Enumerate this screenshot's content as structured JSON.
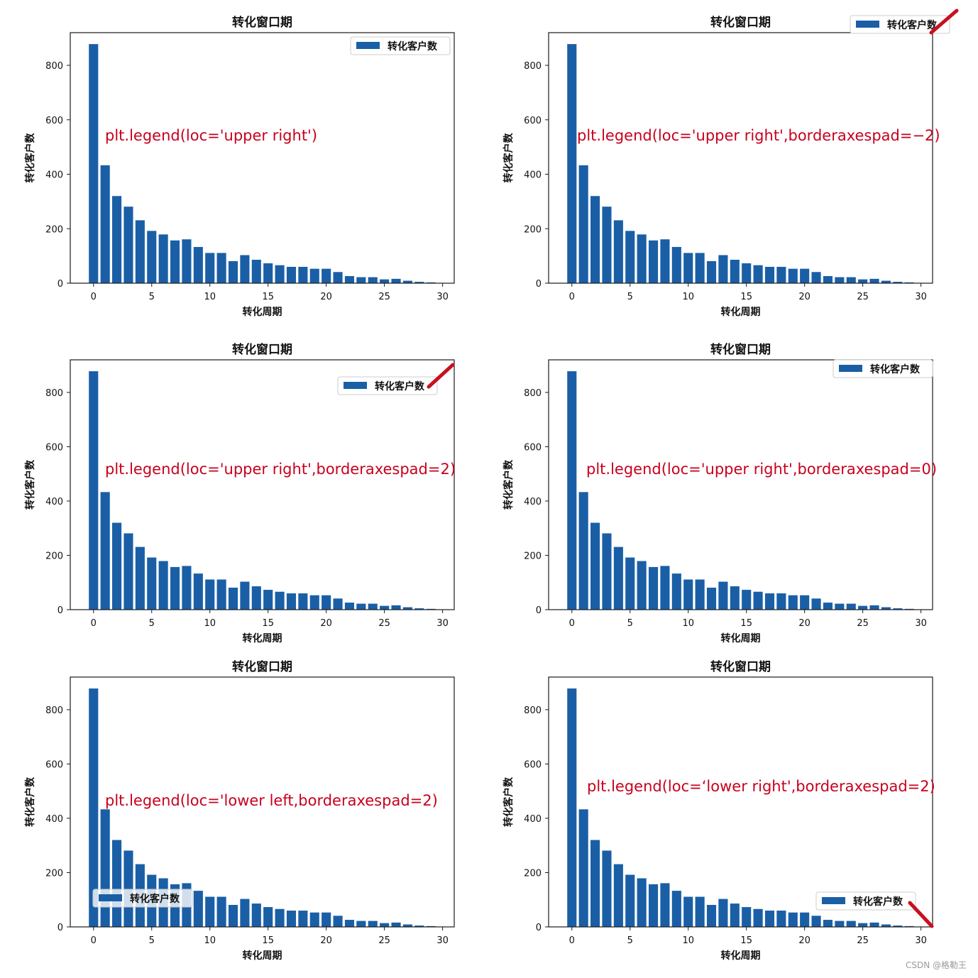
{
  "colors": {
    "bar": "#1a5fa6",
    "annotation": "#c8001e",
    "marker": "#c8101e",
    "axis": "#1a1a1a"
  },
  "watermark": "CSDN @格勒王",
  "shared": {
    "title": "转化窗口期",
    "xlabel": "转化周期",
    "ylabel": "转化客户数",
    "legend_label": "转化客户数"
  },
  "chart_data": [
    {
      "type": "bar",
      "title": "转化窗口期",
      "xlabel": "转化周期",
      "ylabel": "转化客户数",
      "x": [
        0,
        1,
        2,
        3,
        4,
        5,
        6,
        7,
        8,
        9,
        10,
        11,
        12,
        13,
        14,
        15,
        16,
        17,
        18,
        19,
        20,
        21,
        22,
        23,
        24,
        25,
        26,
        27,
        28,
        29
      ],
      "values": [
        878,
        433,
        320,
        281,
        231,
        192,
        179,
        157,
        161,
        133,
        111,
        111,
        81,
        103,
        86,
        73,
        66,
        60,
        60,
        53,
        53,
        41,
        26,
        22,
        22,
        14,
        16,
        9,
        5,
        3
      ],
      "xlim": [
        -2,
        31
      ],
      "ylim": [
        0,
        920
      ],
      "xticks": [
        "0",
        "5",
        "10",
        "15",
        "20",
        "25",
        "30"
      ],
      "yticks": [
        "0",
        "200",
        "400",
        "600",
        "800"
      ],
      "legend": {
        "label": "转化客户数",
        "loc": "upper right",
        "borderaxespad": 0.5
      },
      "annotation": "plt.legend(loc='upper right')"
    },
    {
      "type": "bar",
      "title": "转化窗口期",
      "xlabel": "转化周期",
      "ylabel": "转化客户数",
      "x": [
        0,
        1,
        2,
        3,
        4,
        5,
        6,
        7,
        8,
        9,
        10,
        11,
        12,
        13,
        14,
        15,
        16,
        17,
        18,
        19,
        20,
        21,
        22,
        23,
        24,
        25,
        26,
        27,
        28,
        29
      ],
      "values": [
        878,
        433,
        320,
        281,
        231,
        192,
        179,
        157,
        161,
        133,
        111,
        111,
        81,
        103,
        86,
        73,
        66,
        60,
        60,
        53,
        53,
        41,
        26,
        22,
        22,
        14,
        16,
        9,
        5,
        3
      ],
      "xlim": [
        -2,
        31
      ],
      "ylim": [
        0,
        920
      ],
      "xticks": [
        "0",
        "5",
        "10",
        "15",
        "20",
        "25",
        "30"
      ],
      "yticks": [
        "0",
        "200",
        "400",
        "600",
        "800"
      ],
      "legend": {
        "label": "转化客户数",
        "loc": "upper right",
        "borderaxespad": -2
      },
      "annotation": "plt.legend(loc='upper right',borderaxespad=−2)"
    },
    {
      "type": "bar",
      "title": "转化窗口期",
      "xlabel": "转化周期",
      "ylabel": "转化客户数",
      "x": [
        0,
        1,
        2,
        3,
        4,
        5,
        6,
        7,
        8,
        9,
        10,
        11,
        12,
        13,
        14,
        15,
        16,
        17,
        18,
        19,
        20,
        21,
        22,
        23,
        24,
        25,
        26,
        27,
        28,
        29
      ],
      "values": [
        878,
        433,
        320,
        281,
        231,
        192,
        179,
        157,
        161,
        133,
        111,
        111,
        81,
        103,
        86,
        73,
        66,
        60,
        60,
        53,
        53,
        41,
        26,
        22,
        22,
        14,
        16,
        9,
        5,
        3
      ],
      "xlim": [
        -2,
        31
      ],
      "ylim": [
        0,
        920
      ],
      "xticks": [
        "0",
        "5",
        "10",
        "15",
        "20",
        "25",
        "30"
      ],
      "yticks": [
        "0",
        "200",
        "400",
        "600",
        "800"
      ],
      "legend": {
        "label": "转化客户数",
        "loc": "upper right",
        "borderaxespad": 2
      },
      "annotation": "plt.legend(loc='upper right',borderaxespad=2)"
    },
    {
      "type": "bar",
      "title": "转化窗口期",
      "xlabel": "转化周期",
      "ylabel": "转化客户数",
      "x": [
        0,
        1,
        2,
        3,
        4,
        5,
        6,
        7,
        8,
        9,
        10,
        11,
        12,
        13,
        14,
        15,
        16,
        17,
        18,
        19,
        20,
        21,
        22,
        23,
        24,
        25,
        26,
        27,
        28,
        29
      ],
      "values": [
        878,
        433,
        320,
        281,
        231,
        192,
        179,
        157,
        161,
        133,
        111,
        111,
        81,
        103,
        86,
        73,
        66,
        60,
        60,
        53,
        53,
        41,
        26,
        22,
        22,
        14,
        16,
        9,
        5,
        3
      ],
      "xlim": [
        -2,
        31
      ],
      "ylim": [
        0,
        920
      ],
      "xticks": [
        "0",
        "5",
        "10",
        "15",
        "20",
        "25",
        "30"
      ],
      "yticks": [
        "0",
        "200",
        "400",
        "600",
        "800"
      ],
      "legend": {
        "label": "转化客户数",
        "loc": "upper right",
        "borderaxespad": 0
      },
      "annotation": "plt.legend(loc='upper right',borderaxespad=0)"
    },
    {
      "type": "bar",
      "title": "转化窗口期",
      "xlabel": "转化周期",
      "ylabel": "转化客户数",
      "x": [
        0,
        1,
        2,
        3,
        4,
        5,
        6,
        7,
        8,
        9,
        10,
        11,
        12,
        13,
        14,
        15,
        16,
        17,
        18,
        19,
        20,
        21,
        22,
        23,
        24,
        25,
        26,
        27,
        28,
        29
      ],
      "values": [
        878,
        433,
        320,
        281,
        231,
        192,
        179,
        157,
        161,
        133,
        111,
        111,
        81,
        103,
        86,
        73,
        66,
        60,
        60,
        53,
        53,
        41,
        26,
        22,
        22,
        14,
        16,
        9,
        5,
        3
      ],
      "xlim": [
        -2,
        31
      ],
      "ylim": [
        0,
        920
      ],
      "xticks": [
        "0",
        "5",
        "10",
        "15",
        "20",
        "25",
        "30"
      ],
      "yticks": [
        "0",
        "200",
        "400",
        "600",
        "800"
      ],
      "legend": {
        "label": "转化客户数",
        "loc": "lower left",
        "borderaxespad": 2
      },
      "annotation": "plt.legend(loc='lower left,borderaxespad=2)"
    },
    {
      "type": "bar",
      "title": "转化窗口期",
      "xlabel": "转化周期",
      "ylabel": "转化客户数",
      "x": [
        0,
        1,
        2,
        3,
        4,
        5,
        6,
        7,
        8,
        9,
        10,
        11,
        12,
        13,
        14,
        15,
        16,
        17,
        18,
        19,
        20,
        21,
        22,
        23,
        24,
        25,
        26,
        27,
        28,
        29
      ],
      "values": [
        878,
        433,
        320,
        281,
        231,
        192,
        179,
        157,
        161,
        133,
        111,
        111,
        81,
        103,
        86,
        73,
        66,
        60,
        60,
        53,
        53,
        41,
        26,
        22,
        22,
        14,
        16,
        9,
        5,
        3
      ],
      "xlim": [
        -2,
        31
      ],
      "ylim": [
        0,
        920
      ],
      "xticks": [
        "0",
        "5",
        "10",
        "15",
        "20",
        "25",
        "30"
      ],
      "yticks": [
        "0",
        "200",
        "400",
        "600",
        "800"
      ],
      "legend": {
        "label": "转化客户数",
        "loc": "lower right",
        "borderaxespad": 2
      },
      "annotation": "plt.legend(loc=‘lower right',borderaxespad=2)"
    }
  ]
}
